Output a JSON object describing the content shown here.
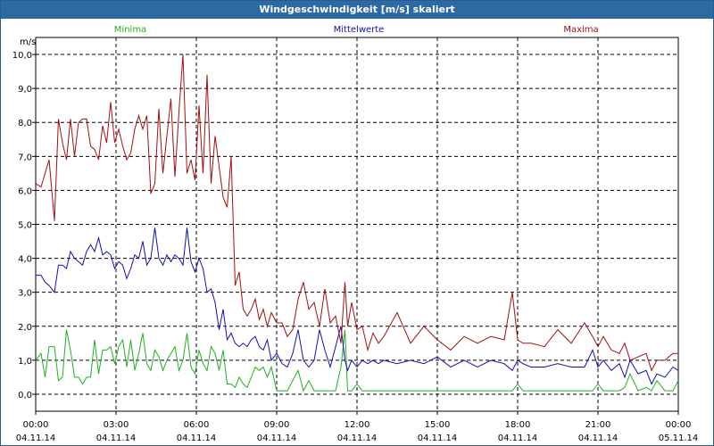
{
  "window": {
    "title": "Windgeschwindigkeit [m/s] skaliert"
  },
  "colors": {
    "min": "#20b020",
    "mean": "#1010b0",
    "max": "#a01010",
    "grid": "#000000"
  },
  "chart_data": {
    "type": "line",
    "title": "Windgeschwindigkeit [m/s] skaliert",
    "ylabel": "m/s",
    "ylim": [
      -0.5,
      10.5
    ],
    "yticks": [
      0,
      1,
      2,
      3,
      4,
      5,
      6,
      7,
      8,
      9,
      10
    ],
    "ytick_labels": [
      "0,0",
      "1,0",
      "2,0",
      "3,0",
      "4,0",
      "5,0",
      "6,0",
      "7,0",
      "8,0",
      "9,0",
      "10,0"
    ],
    "xlim": [
      0,
      24
    ],
    "xticks": [
      0,
      3,
      6,
      9,
      12,
      15,
      18,
      21,
      24
    ],
    "xtick_labels": [
      [
        "00:00",
        "04.11.14"
      ],
      [
        "03:00",
        "04.11.14"
      ],
      [
        "06:00",
        "04.11.14"
      ],
      [
        "09:00",
        "04.11.14"
      ],
      [
        "12:00",
        "04.11.14"
      ],
      [
        "15:00",
        "04.11.14"
      ],
      [
        "18:00",
        "04.11.14"
      ],
      [
        "21:00",
        "04.11.14"
      ],
      [
        "00:00",
        "05.11.14"
      ]
    ],
    "grid": true,
    "series": [
      {
        "name": "Minima",
        "key": "min",
        "x": [
          0,
          0.2,
          0.35,
          0.5,
          0.7,
          0.85,
          1.0,
          1.15,
          1.3,
          1.45,
          1.6,
          1.75,
          1.9,
          2.05,
          2.2,
          2.35,
          2.5,
          2.65,
          2.8,
          2.95,
          3.1,
          3.25,
          3.4,
          3.55,
          3.7,
          3.85,
          4.0,
          4.15,
          4.3,
          4.45,
          4.6,
          4.75,
          4.9,
          5.05,
          5.2,
          5.35,
          5.5,
          5.65,
          5.8,
          5.95,
          6.1,
          6.25,
          6.4,
          6.55,
          6.7,
          6.85,
          7.0,
          7.15,
          7.3,
          7.45,
          7.6,
          7.75,
          7.9,
          8.05,
          8.2,
          8.35,
          8.5,
          8.65,
          8.8,
          9.0,
          9.2,
          9.4,
          9.6,
          9.8,
          10.0,
          10.2,
          10.4,
          10.6,
          10.8,
          11.0,
          11.2,
          11.4,
          11.55,
          11.65,
          11.8,
          12.0,
          12.2,
          12.4,
          12.6,
          12.8,
          13.0,
          13.5,
          14.0,
          14.5,
          15.0,
          15.5,
          16.0,
          16.5,
          17.0,
          17.5,
          17.8,
          18.0,
          18.2,
          18.5,
          19.0,
          19.5,
          20.0,
          20.5,
          20.8,
          21.0,
          21.2,
          21.5,
          21.8,
          22.0,
          22.2,
          22.5,
          22.8,
          23.0,
          23.2,
          23.5,
          23.8,
          24.0
        ],
        "values": [
          1.0,
          1.2,
          0.5,
          1.4,
          1.4,
          0.4,
          0.5,
          1.9,
          1.3,
          0.5,
          0.5,
          0.3,
          0.5,
          0.5,
          1.6,
          0.6,
          1.3,
          1.3,
          1.4,
          0.9,
          1.4,
          1.6,
          0.8,
          1.6,
          0.7,
          1.2,
          1.8,
          0.9,
          0.7,
          1.3,
          1.1,
          0.7,
          1.0,
          1.2,
          1.4,
          0.7,
          1.0,
          1.8,
          0.8,
          0.6,
          1.3,
          0.9,
          0.7,
          1.4,
          1.2,
          0.7,
          1.3,
          0.3,
          0.3,
          0.2,
          0.5,
          0.3,
          0.2,
          0.5,
          0.8,
          0.7,
          0.8,
          0.5,
          0.8,
          0.1,
          0.1,
          0.1,
          0.4,
          0.7,
          0.1,
          0.4,
          0.1,
          0.1,
          0.1,
          0.1,
          0.1,
          0.8,
          1.9,
          0.1,
          0.1,
          0.3,
          0.1,
          0.1,
          0.1,
          0.1,
          0.1,
          0.1,
          0.1,
          0.1,
          0.1,
          0.1,
          0.1,
          0.1,
          0.1,
          0.1,
          0.1,
          0.3,
          0.1,
          0.1,
          0.1,
          0.1,
          0.1,
          0.1,
          0.1,
          0.3,
          0.1,
          0.1,
          0.1,
          0.2,
          0.6,
          0.1,
          0.2,
          0.1,
          0.4,
          0.1,
          0.1,
          0.4
        ]
      },
      {
        "name": "Mittelwerte",
        "key": "mean",
        "x": [
          0,
          0.2,
          0.35,
          0.5,
          0.7,
          0.85,
          1.0,
          1.15,
          1.3,
          1.45,
          1.6,
          1.75,
          1.9,
          2.05,
          2.2,
          2.35,
          2.5,
          2.65,
          2.8,
          2.95,
          3.1,
          3.25,
          3.4,
          3.55,
          3.7,
          3.85,
          4.0,
          4.15,
          4.3,
          4.45,
          4.6,
          4.75,
          4.9,
          5.05,
          5.2,
          5.35,
          5.5,
          5.65,
          5.8,
          5.95,
          6.1,
          6.25,
          6.4,
          6.55,
          6.7,
          6.85,
          7.0,
          7.15,
          7.3,
          7.45,
          7.6,
          7.75,
          7.9,
          8.05,
          8.2,
          8.35,
          8.5,
          8.65,
          8.8,
          9.0,
          9.2,
          9.4,
          9.6,
          9.8,
          10.0,
          10.2,
          10.4,
          10.6,
          10.8,
          11.0,
          11.2,
          11.4,
          11.55,
          11.65,
          11.8,
          12.0,
          12.2,
          12.4,
          12.6,
          12.8,
          13.0,
          13.5,
          14.0,
          14.5,
          15.0,
          15.5,
          16.0,
          16.5,
          17.0,
          17.5,
          17.8,
          18.0,
          18.2,
          18.5,
          19.0,
          19.5,
          20.0,
          20.5,
          20.8,
          21.0,
          21.2,
          21.5,
          21.8,
          22.0,
          22.2,
          22.5,
          22.8,
          23.0,
          23.2,
          23.5,
          23.8,
          24.0
        ],
        "values": [
          3.5,
          3.5,
          3.3,
          3.2,
          3.0,
          3.8,
          3.8,
          3.7,
          4.2,
          4.0,
          3.9,
          3.8,
          4.2,
          4.4,
          4.2,
          4.6,
          4.1,
          4.2,
          4.1,
          3.7,
          3.9,
          3.8,
          3.4,
          3.7,
          4.1,
          4.0,
          4.5,
          3.8,
          4.0,
          4.9,
          4.0,
          3.8,
          4.1,
          3.9,
          4.1,
          4.0,
          3.8,
          4.9,
          3.9,
          3.6,
          4.0,
          3.7,
          3.0,
          3.1,
          2.7,
          1.9,
          2.5,
          1.6,
          1.8,
          1.5,
          1.4,
          1.5,
          1.4,
          1.6,
          1.7,
          1.4,
          1.3,
          1.6,
          1.0,
          1.2,
          0.9,
          0.8,
          1.2,
          1.9,
          1.0,
          0.8,
          1.0,
          1.9,
          1.3,
          0.8,
          1.4,
          2.0,
          1.0,
          0.7,
          1.0,
          0.8,
          1.0,
          0.9,
          1.0,
          0.9,
          1.0,
          0.9,
          1.0,
          0.9,
          1.1,
          0.8,
          1.0,
          0.8,
          1.0,
          0.9,
          0.7,
          1.0,
          0.9,
          0.8,
          0.8,
          0.9,
          0.8,
          0.8,
          1.3,
          0.8,
          1.0,
          0.7,
          0.9,
          0.5,
          1.0,
          0.6,
          0.7,
          0.3,
          0.6,
          0.5,
          0.8,
          0.7
        ]
      },
      {
        "name": "Maxima",
        "key": "max",
        "x": [
          0,
          0.2,
          0.35,
          0.5,
          0.7,
          0.85,
          1.0,
          1.15,
          1.3,
          1.45,
          1.6,
          1.75,
          1.9,
          2.05,
          2.2,
          2.35,
          2.5,
          2.65,
          2.8,
          2.95,
          3.1,
          3.25,
          3.4,
          3.55,
          3.7,
          3.85,
          4.0,
          4.15,
          4.3,
          4.45,
          4.6,
          4.75,
          4.9,
          5.05,
          5.2,
          5.35,
          5.5,
          5.65,
          5.8,
          5.95,
          6.1,
          6.25,
          6.4,
          6.55,
          6.7,
          6.85,
          7.0,
          7.15,
          7.3,
          7.45,
          7.6,
          7.75,
          7.9,
          8.05,
          8.2,
          8.35,
          8.5,
          8.65,
          8.8,
          9.0,
          9.2,
          9.4,
          9.6,
          9.8,
          10.0,
          10.2,
          10.4,
          10.6,
          10.8,
          11.0,
          11.2,
          11.4,
          11.55,
          11.65,
          11.8,
          12.0,
          12.2,
          12.4,
          12.6,
          12.8,
          13.0,
          13.5,
          14.0,
          14.5,
          15.0,
          15.5,
          16.0,
          16.5,
          17.0,
          17.5,
          17.8,
          18.0,
          18.2,
          18.5,
          19.0,
          19.5,
          20.0,
          20.5,
          20.8,
          21.0,
          21.2,
          21.5,
          21.8,
          22.0,
          22.2,
          22.5,
          22.8,
          23.0,
          23.2,
          23.5,
          23.8,
          24.0
        ],
        "values": [
          6.2,
          6.1,
          6.5,
          6.9,
          5.1,
          8.1,
          7.4,
          6.9,
          8.1,
          7.0,
          8.0,
          8.1,
          8.1,
          7.3,
          7.2,
          6.9,
          7.9,
          7.4,
          8.6,
          7.4,
          7.8,
          7.3,
          6.9,
          7.1,
          7.8,
          8.2,
          7.8,
          8.2,
          5.9,
          6.2,
          8.4,
          6.5,
          7.6,
          8.7,
          6.4,
          8.3,
          10.0,
          6.5,
          6.9,
          6.3,
          8.5,
          6.5,
          9.4,
          6.2,
          7.6,
          6.7,
          5.8,
          5.5,
          7.0,
          3.2,
          3.6,
          2.5,
          2.3,
          2.5,
          2.8,
          2.2,
          2.5,
          2.0,
          2.4,
          2.1,
          2.1,
          1.7,
          1.9,
          2.8,
          3.3,
          2.5,
          2.7,
          2.0,
          3.1,
          2.1,
          2.3,
          1.5,
          3.3,
          2.0,
          2.7,
          1.9,
          2.0,
          1.3,
          1.8,
          1.5,
          1.7,
          2.4,
          1.5,
          2.0,
          1.6,
          1.3,
          1.7,
          1.5,
          1.7,
          1.6,
          3.0,
          1.6,
          1.5,
          1.5,
          1.4,
          1.9,
          1.5,
          2.1,
          1.7,
          1.4,
          1.7,
          1.3,
          1.2,
          1.5,
          1.0,
          1.1,
          1.2,
          0.7,
          1.0,
          1.0,
          1.2,
          1.2
        ]
      }
    ]
  }
}
